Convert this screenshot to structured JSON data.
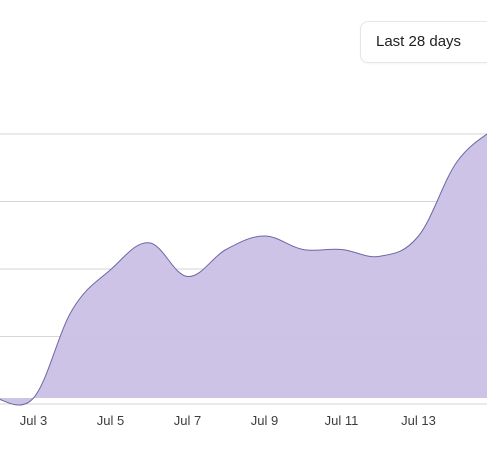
{
  "range_selector": {
    "label": "Last 28 days"
  },
  "colors": {
    "area_fill": "#c9c0e6",
    "area_stroke": "#6f67a3",
    "grid": "#d6d6d6"
  },
  "chart_data": {
    "type": "area",
    "title": "",
    "xlabel": "",
    "ylabel": "",
    "grid": true,
    "x_tick_labels": [
      "Jul 3",
      "Jul 5",
      "Jul 7",
      "Jul 9",
      "Jul 11",
      "Jul 13"
    ],
    "series": [
      {
        "x": [
          "Jul 2",
          "Jul 3",
          "Jul 4",
          "Jul 5",
          "Jul 6",
          "Jul 7",
          "Jul 8",
          "Jul 9",
          "Jul 10",
          "Jul 11",
          "Jul 12",
          "Jul 13",
          "Jul 14",
          "Jul 15"
        ],
        "values": [
          0,
          0,
          1.3,
          1.9,
          2.3,
          1.8,
          2.2,
          2.4,
          2.2,
          2.2,
          2.1,
          2.4,
          3.5,
          4.0
        ]
      }
    ],
    "ylim": [
      0,
      4
    ]
  }
}
